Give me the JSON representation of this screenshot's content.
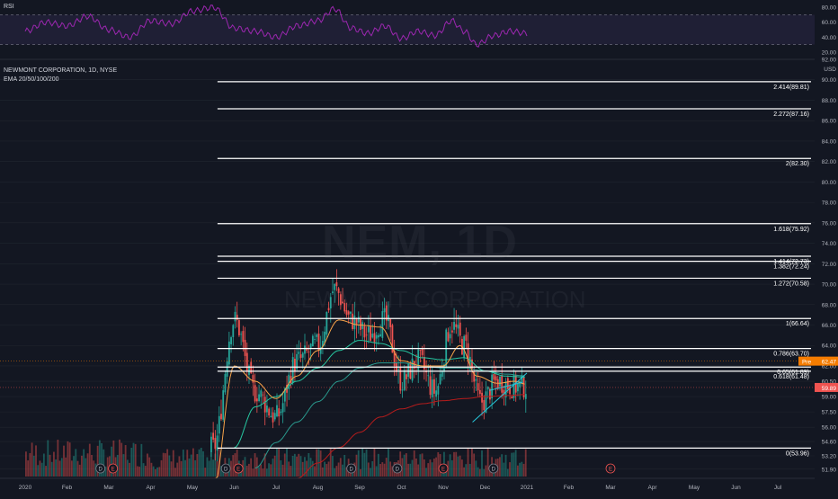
{
  "header": {
    "symbol_line": "NEWMONT CORPORATION, 1D, NYSE",
    "indicator_line": "EMA 20/50/100/200",
    "rsi_label": "RSI",
    "currency": "USD"
  },
  "watermark": {
    "ticker": "NEM, 1D",
    "name": "NEWMONT CORPORATION"
  },
  "colors": {
    "background": "#131722",
    "up": "#26a69a",
    "down": "#ef5350",
    "ema20": "#f7a44a",
    "ema50": "#26c6a0",
    "ema100": "#2a9a8e",
    "ema200": "#b71c1c",
    "rsi_line": "#9c27b0",
    "fib_line": "#ffffff",
    "pre_badge": "#f57c00",
    "price_badge": "#ef5350"
  },
  "chart_data": {
    "type": "candlestick",
    "title": "NEWMONT CORPORATION, 1D, NYSE",
    "ylim": [
      51.0,
      92.0
    ],
    "yticks": [
      "92.00",
      "90.00",
      "88.00",
      "86.00",
      "84.00",
      "82.00",
      "80.00",
      "78.00",
      "76.00",
      "74.00",
      "72.00",
      "70.00",
      "68.00",
      "66.00",
      "64.00",
      "62.00",
      "60.50",
      "59.00",
      "57.50",
      "56.00",
      "54.60",
      "53.20",
      "51.90"
    ],
    "ytick_values": [
      92,
      90,
      88,
      86,
      84,
      82,
      80,
      78,
      76,
      74,
      72,
      70,
      68,
      66,
      64,
      62,
      60.5,
      59,
      57.5,
      56,
      54.6,
      53.2,
      51.9
    ],
    "xticks": [
      "2020",
      "Feb",
      "Mar",
      "Apr",
      "May",
      "Jun",
      "Jul",
      "Aug",
      "Sep",
      "Oct",
      "Nov",
      "Dec",
      "2021",
      "Feb",
      "Mar",
      "Apr",
      "May",
      "Jun",
      "Jul"
    ],
    "xtick_months": [
      0,
      1,
      2,
      3,
      4,
      5,
      6,
      7,
      8,
      9,
      10,
      11,
      12,
      13,
      14,
      15,
      16,
      17,
      18
    ],
    "price_anchors": [
      [
        4.5,
        54.0
      ],
      [
        5.0,
        66.5
      ],
      [
        5.5,
        59.5
      ],
      [
        6.0,
        57.0
      ],
      [
        6.5,
        62.5
      ],
      [
        7.0,
        64.0
      ],
      [
        7.4,
        69.5
      ],
      [
        7.8,
        66.5
      ],
      [
        8.2,
        65.0
      ],
      [
        8.6,
        66.5
      ],
      [
        9.0,
        60.5
      ],
      [
        9.4,
        62.5
      ],
      [
        9.8,
        59.5
      ],
      [
        10.2,
        66.0
      ],
      [
        10.5,
        64.0
      ],
      [
        10.9,
        58.5
      ],
      [
        11.3,
        60.5
      ],
      [
        11.7,
        60.0
      ],
      [
        12.0,
        60.0
      ]
    ],
    "ema_anchors": {
      "ema20": [
        [
          4.5,
          50.0
        ],
        [
          5.0,
          62.0
        ],
        [
          5.5,
          60.5
        ],
        [
          6.0,
          58.8
        ],
        [
          6.5,
          61.0
        ],
        [
          7.0,
          63.5
        ],
        [
          7.5,
          66.5
        ],
        [
          8.0,
          66.0
        ],
        [
          8.5,
          65.8
        ],
        [
          9.0,
          62.5
        ],
        [
          9.5,
          62.0
        ],
        [
          10.0,
          62.0
        ],
        [
          10.4,
          64.0
        ],
        [
          10.8,
          61.0
        ],
        [
          11.3,
          60.3
        ],
        [
          11.7,
          60.5
        ],
        [
          12.0,
          60.2
        ]
      ],
      "ema50": [
        [
          5.0,
          54.0
        ],
        [
          5.5,
          58.0
        ],
        [
          6.0,
          59.0
        ],
        [
          6.5,
          60.5
        ],
        [
          7.0,
          61.8
        ],
        [
          7.5,
          63.5
        ],
        [
          8.0,
          64.5
        ],
        [
          8.5,
          64.2
        ],
        [
          9.0,
          63.5
        ],
        [
          9.5,
          62.8
        ],
        [
          10.0,
          62.6
        ],
        [
          10.5,
          62.8
        ],
        [
          11.0,
          61.5
        ],
        [
          11.5,
          61.0
        ],
        [
          12.0,
          60.9
        ]
      ],
      "ema100": [
        [
          5.5,
          52.0
        ],
        [
          6.0,
          54.5
        ],
        [
          6.5,
          56.5
        ],
        [
          7.0,
          58.5
        ],
        [
          7.5,
          60.5
        ],
        [
          8.0,
          61.8
        ],
        [
          8.5,
          62.3
        ],
        [
          9.0,
          62.3
        ],
        [
          9.5,
          62.0
        ],
        [
          10.0,
          61.8
        ],
        [
          10.5,
          61.8
        ],
        [
          11.0,
          61.5
        ],
        [
          11.5,
          61.2
        ],
        [
          12.0,
          61.0
        ]
      ],
      "ema200": [
        [
          5.8,
          49.0
        ],
        [
          6.5,
          51.0
        ],
        [
          7.0,
          52.5
        ],
        [
          7.5,
          54.0
        ],
        [
          8.0,
          55.5
        ],
        [
          8.5,
          57.0
        ],
        [
          9.0,
          57.8
        ],
        [
          9.5,
          58.3
        ],
        [
          10.0,
          58.6
        ],
        [
          10.5,
          58.8
        ],
        [
          11.0,
          59.0
        ],
        [
          11.5,
          59.1
        ],
        [
          12.0,
          59.2
        ]
      ]
    },
    "fib_levels": [
      {
        "label": "2.414(89.81)",
        "price": 89.81,
        "start_month": 4.6
      },
      {
        "label": "2.272(87.16)",
        "price": 87.16,
        "start_month": 4.6
      },
      {
        "label": "2(82.30)",
        "price": 82.3,
        "start_month": 4.6
      },
      {
        "label": "1.618(75.92)",
        "price": 75.92,
        "start_month": 4.6
      },
      {
        "label": "1.414(72.73)",
        "price": 72.73,
        "start_month": 4.6
      },
      {
        "label": "1.382(72.24)",
        "price": 72.24,
        "start_month": 4.6
      },
      {
        "label": "1.272(70.58)",
        "price": 70.58,
        "start_month": 4.6
      },
      {
        "label": "1(66.64)",
        "price": 66.64,
        "start_month": 4.6
      },
      {
        "label": "0.786(63.70)",
        "price": 63.7,
        "start_month": 4.6
      },
      {
        "label": "0.65(61.89)",
        "price": 61.89,
        "start_month": 4.6
      },
      {
        "label": "0.618(61.48)",
        "price": 61.48,
        "start_month": 4.6
      },
      {
        "label": "0(53.96)",
        "price": 53.96,
        "start_month": 4.6
      }
    ],
    "trendlines": [
      {
        "from": [
          10.7,
          56.5
        ],
        "to": [
          12.0,
          61.3
        ]
      },
      {
        "from": [
          11.1,
          59.6
        ],
        "to": [
          11.9,
          60.4
        ]
      }
    ],
    "price_badges": [
      {
        "label": "Pre",
        "value": "62.47",
        "price": 62.47
      },
      {
        "label": "",
        "value": "59.89",
        "price": 59.89
      }
    ],
    "rsi": {
      "levels": [
        70,
        30
      ],
      "yticks": [
        "80.00",
        "60.00",
        "40.00",
        "20.00"
      ],
      "ytick_values": [
        80,
        60,
        40,
        20
      ],
      "ylim": [
        15,
        85
      ],
      "anchors": [
        [
          0.0,
          48
        ],
        [
          0.5,
          60
        ],
        [
          1.0,
          55
        ],
        [
          1.5,
          68
        ],
        [
          2.0,
          50
        ],
        [
          2.5,
          40
        ],
        [
          3.0,
          62
        ],
        [
          3.5,
          58
        ],
        [
          4.0,
          75
        ],
        [
          4.5,
          80
        ],
        [
          5.0,
          52
        ],
        [
          5.5,
          48
        ],
        [
          6.0,
          40
        ],
        [
          6.5,
          55
        ],
        [
          7.0,
          62
        ],
        [
          7.4,
          78
        ],
        [
          7.8,
          52
        ],
        [
          8.2,
          45
        ],
        [
          8.6,
          55
        ],
        [
          9.0,
          38
        ],
        [
          9.4,
          48
        ],
        [
          9.8,
          42
        ],
        [
          10.2,
          62
        ],
        [
          10.5,
          48
        ],
        [
          10.8,
          30
        ],
        [
          11.2,
          42
        ],
        [
          11.6,
          48
        ],
        [
          12.0,
          45
        ]
      ]
    },
    "event_markers": [
      {
        "month": 1.8,
        "label": "D"
      },
      {
        "month": 2.1,
        "label": "E"
      },
      {
        "month": 4.8,
        "label": "D"
      },
      {
        "month": 5.1,
        "label": "E"
      },
      {
        "month": 7.8,
        "label": "D"
      },
      {
        "month": 8.9,
        "label": "D"
      },
      {
        "month": 10.0,
        "label": "E"
      },
      {
        "month": 11.2,
        "label": "D"
      },
      {
        "month": 14.0,
        "label": "E"
      }
    ],
    "volume_level": 0.35
  }
}
